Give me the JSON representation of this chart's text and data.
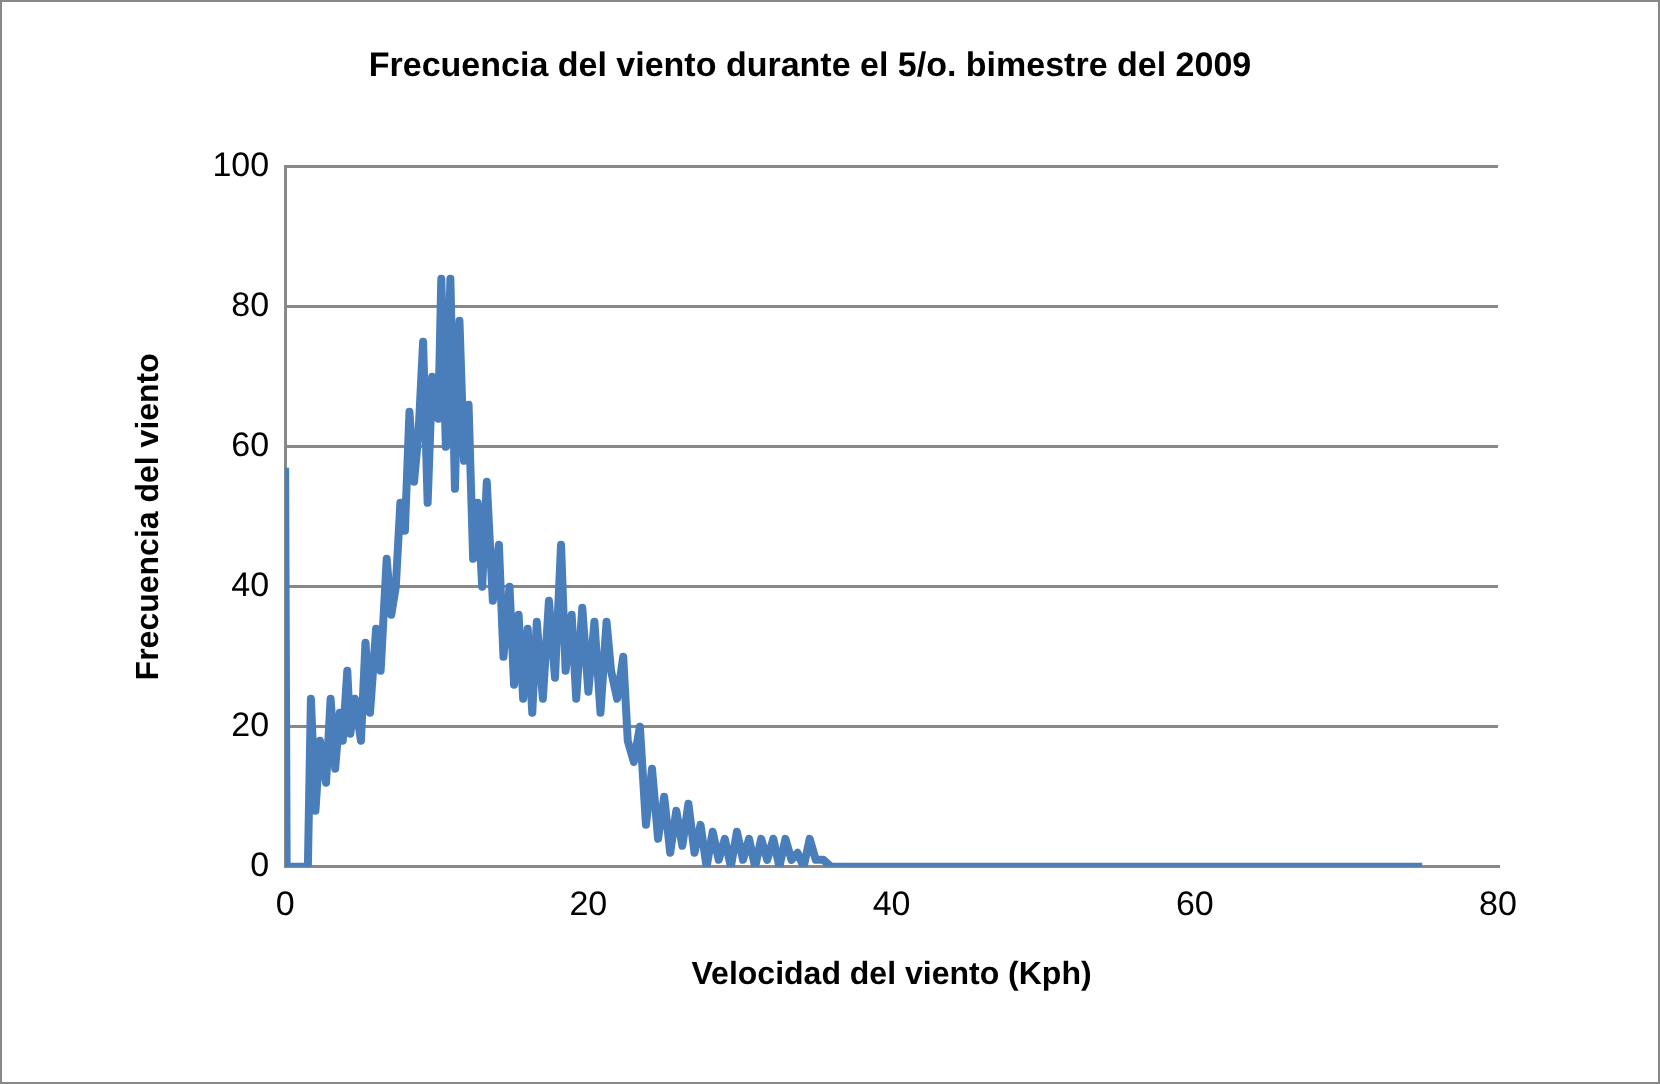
{
  "chart_data": {
    "type": "line",
    "title": "Frecuencia del viento durante el 5/o. bimestre del 2009",
    "xlabel": "Velocidad del viento (Kph)",
    "ylabel": "Frecuencia del viento",
    "x": [
      0,
      0.1,
      1.5,
      1.7,
      2,
      2.3,
      2.7,
      3,
      3.3,
      3.6,
      3.8,
      4.1,
      4.3,
      4.6,
      5,
      5.3,
      5.6,
      6,
      6.3,
      6.7,
      7,
      7.3,
      7.6,
      7.9,
      8.2,
      8.5,
      8.8,
      9.1,
      9.4,
      9.7,
      10.1,
      10.3,
      10.6,
      10.9,
      11.2,
      11.5,
      11.8,
      12.1,
      12.4,
      12.7,
      13,
      13.3,
      13.7,
      14.1,
      14.4,
      14.8,
      15.1,
      15.4,
      15.7,
      16,
      16.3,
      16.6,
      17,
      17.4,
      17.8,
      18.2,
      18.5,
      18.9,
      19.2,
      19.6,
      20,
      20.4,
      20.8,
      21.2,
      21.5,
      21.9,
      22.3,
      22.6,
      23,
      23.4,
      23.8,
      24.2,
      24.6,
      25,
      25.4,
      25.8,
      26.2,
      26.6,
      27,
      27.4,
      27.8,
      28.2,
      28.6,
      29,
      29.4,
      29.8,
      30.2,
      30.6,
      31,
      31.4,
      31.8,
      32.2,
      32.6,
      33,
      33.4,
      33.8,
      34.2,
      34.6,
      35,
      35.5,
      36,
      75
    ],
    "series": [
      {
        "color": "#4a7ebb",
        "values": [
          57,
          0,
          0,
          24,
          8,
          18,
          12,
          24,
          14,
          22,
          18,
          28,
          19,
          24,
          18,
          32,
          22,
          34,
          28,
          44,
          36,
          40,
          52,
          48,
          65,
          55,
          62,
          75,
          52,
          70,
          64,
          84,
          60,
          84,
          54,
          78,
          58,
          66,
          44,
          52,
          40,
          55,
          38,
          46,
          30,
          40,
          26,
          36,
          24,
          34,
          22,
          35,
          24,
          38,
          27,
          46,
          28,
          36,
          24,
          37,
          25,
          35,
          22,
          35,
          28,
          24,
          30,
          18,
          15,
          20,
          6,
          14,
          4,
          10,
          2,
          8,
          3,
          9,
          2,
          6,
          0,
          5,
          1,
          4,
          0,
          5,
          1,
          4,
          0,
          4,
          1,
          4,
          0,
          4,
          1,
          2,
          0,
          4,
          1,
          1,
          0,
          0
        ]
      }
    ],
    "xlim": [
      0,
      80
    ],
    "xticks": [
      0,
      20,
      40,
      60,
      80
    ],
    "ylim": [
      0,
      100
    ],
    "yticks": [
      0,
      20,
      40,
      60,
      80,
      100
    ],
    "grid": "y",
    "legend": false,
    "marker": "none",
    "line_style": "solid"
  }
}
